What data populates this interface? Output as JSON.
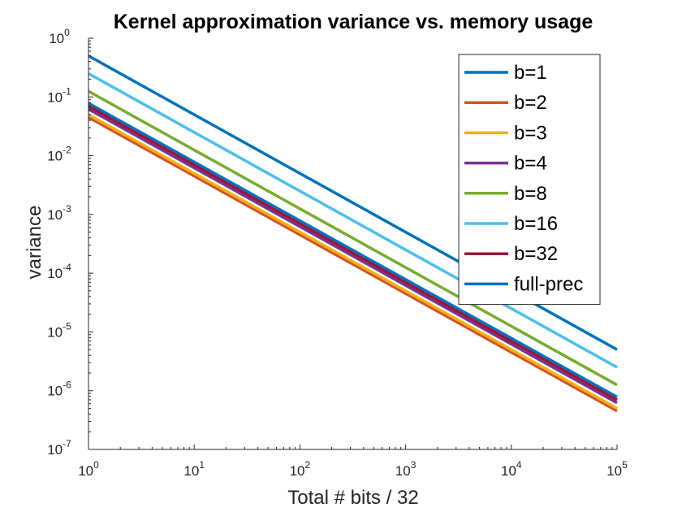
{
  "chart_data": {
    "type": "line",
    "title": "Kernel approximation variance vs. memory usage",
    "xlabel": "Total # bits / 32",
    "ylabel": "variance",
    "xscale": "log",
    "yscale": "log",
    "xlim": [
      1,
      100000
    ],
    "ylim": [
      1e-07,
      1
    ],
    "x_ticks": [
      {
        "base": "10",
        "exp": "0"
      },
      {
        "base": "10",
        "exp": "1"
      },
      {
        "base": "10",
        "exp": "2"
      },
      {
        "base": "10",
        "exp": "3"
      },
      {
        "base": "10",
        "exp": "4"
      },
      {
        "base": "10",
        "exp": "5"
      }
    ],
    "y_ticks": [
      {
        "base": "10",
        "exp": "-7"
      },
      {
        "base": "10",
        "exp": "-6"
      },
      {
        "base": "10",
        "exp": "-5"
      },
      {
        "base": "10",
        "exp": "-4"
      },
      {
        "base": "10",
        "exp": "-3"
      },
      {
        "base": "10",
        "exp": "-2"
      },
      {
        "base": "10",
        "exp": "-1"
      },
      {
        "base": "10",
        "exp": "0"
      }
    ],
    "grid": false,
    "legend_position": "top-right",
    "x": [
      1,
      100000
    ],
    "series": [
      {
        "name": "b=1",
        "color": "#0072BD",
        "values": [
          0.5,
          5e-06
        ]
      },
      {
        "name": "b=2",
        "color": "#D95319",
        "values": [
          0.045,
          4.5e-07
        ]
      },
      {
        "name": "b=3",
        "color": "#EDB120",
        "values": [
          0.05,
          5e-07
        ]
      },
      {
        "name": "b=4",
        "color": "#7E2F8E",
        "values": [
          0.062,
          6.2e-07
        ]
      },
      {
        "name": "b=8",
        "color": "#77AC30",
        "values": [
          0.125,
          1.25e-06
        ]
      },
      {
        "name": "b=16",
        "color": "#4DBEEE",
        "values": [
          0.25,
          2.5e-06
        ]
      },
      {
        "name": "b=32",
        "color": "#A2142F",
        "values": [
          0.07,
          7e-07
        ]
      },
      {
        "name": "full-prec",
        "color": "#0072BD",
        "values": [
          0.078,
          7.8e-07
        ]
      }
    ]
  }
}
